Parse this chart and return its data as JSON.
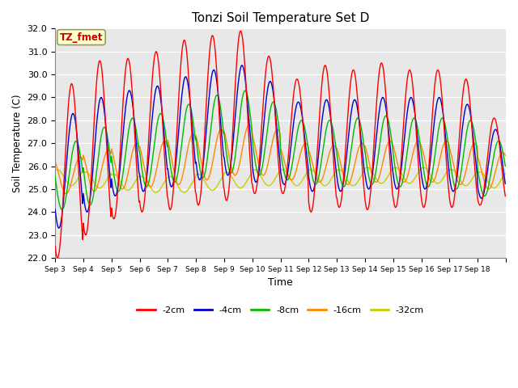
{
  "title": "Tonzi Soil Temperature Set D",
  "xlabel": "Time",
  "ylabel": "Soil Temperature (C)",
  "ylim": [
    22.0,
    32.0
  ],
  "yticks": [
    22.0,
    23.0,
    24.0,
    25.0,
    26.0,
    27.0,
    28.0,
    29.0,
    30.0,
    31.0,
    32.0
  ],
  "series_labels": [
    "-2cm",
    "-4cm",
    "-8cm",
    "-16cm",
    "-32cm"
  ],
  "series_colors": [
    "#ff0000",
    "#0000cc",
    "#00bb00",
    "#ff8800",
    "#cccc00"
  ],
  "annotation_label": "TZ_fmet",
  "annotation_bg": "#ffffcc",
  "annotation_border": "#999966",
  "annotation_text_color": "#cc0000",
  "plot_bg_color": "#e8e8e8",
  "xtick_labels": [
    "Sep 3",
    "Sep 4",
    "Sep 5",
    "Sep 6",
    "Sep 7",
    "Sep 8",
    "Sep 9",
    "Sep 10",
    "Sep 11",
    "Sep 12",
    "Sep 13",
    "Sep 14",
    "Sep 15",
    "Sep 16",
    "Sep 17",
    "Sep 18"
  ],
  "num_days": 16,
  "pts_per_day": 48
}
